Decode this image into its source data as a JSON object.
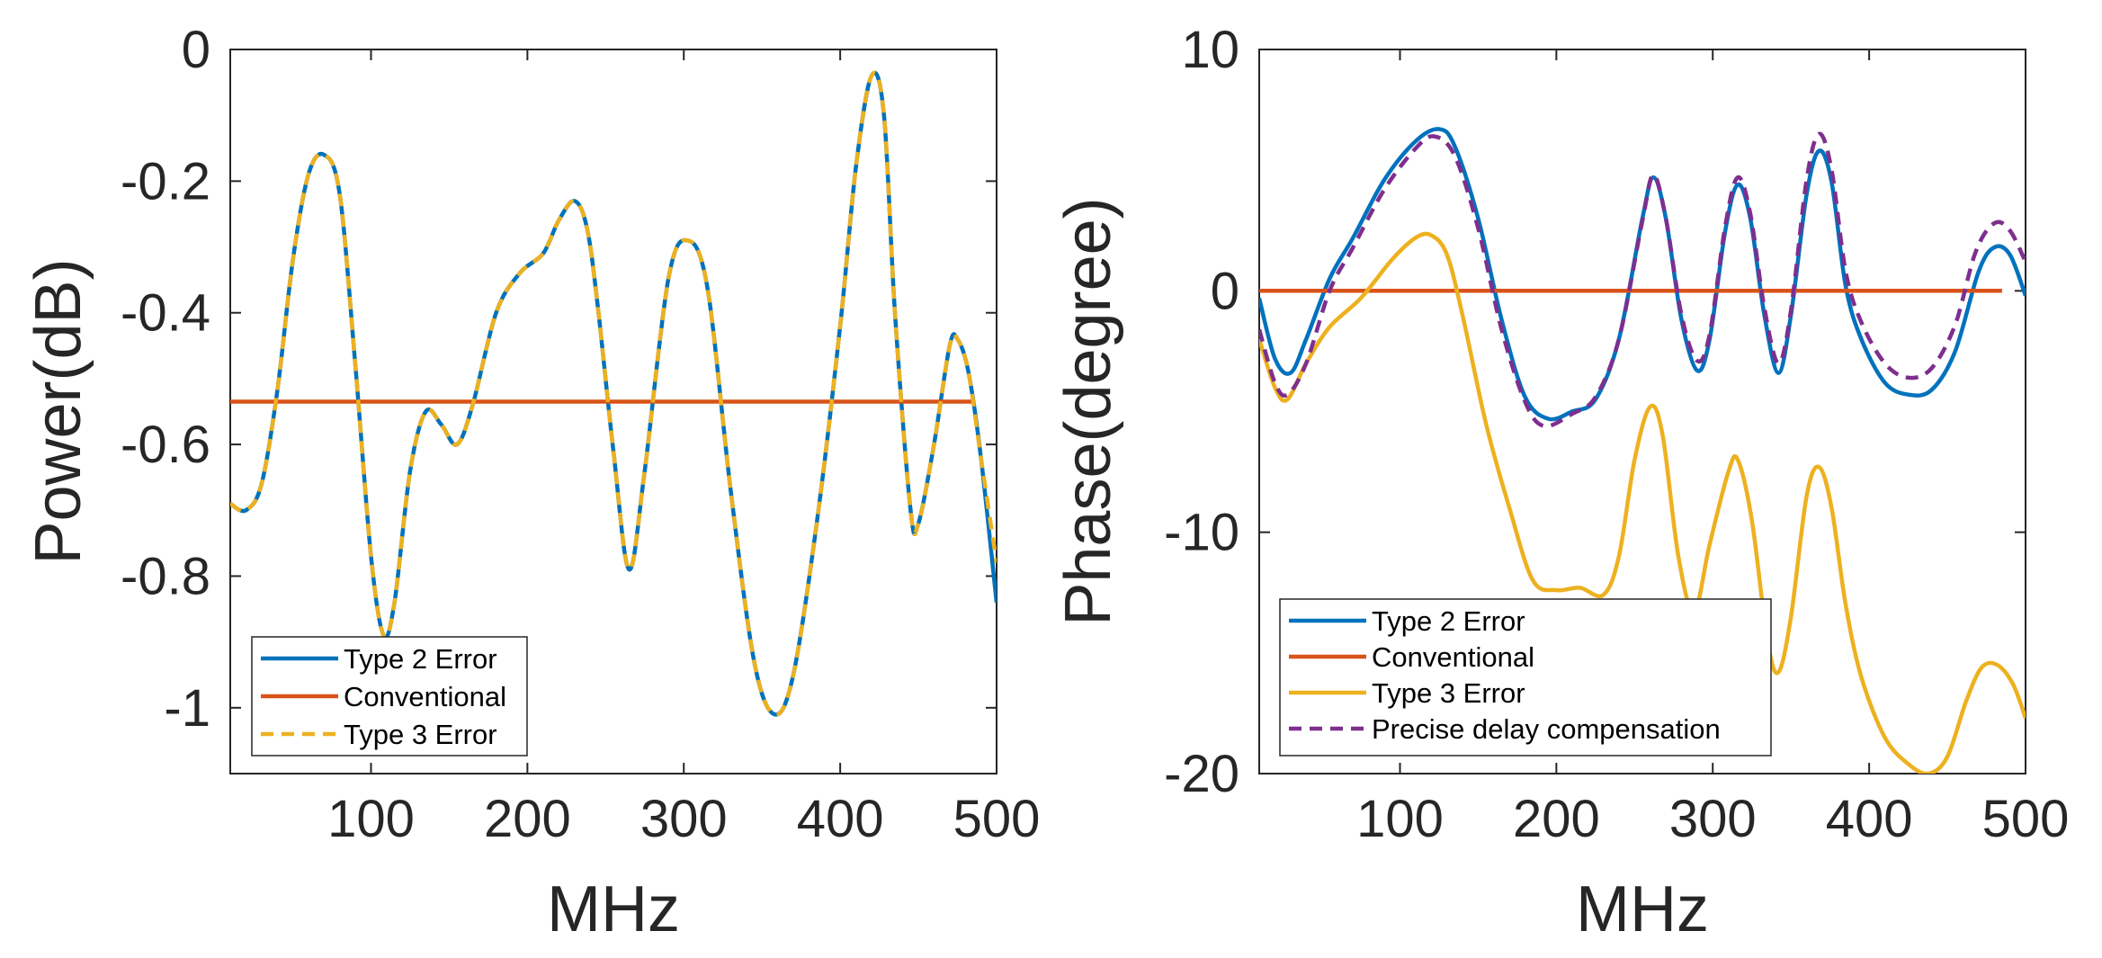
{
  "chart_data": [
    {
      "type": "line",
      "xlabel": "MHz",
      "ylabel": "Power(dB)",
      "xlim": [
        10,
        500
      ],
      "ylim": [
        -1.1,
        0
      ],
      "xticks": [
        100,
        200,
        300,
        400,
        500
      ],
      "yticks": [
        0,
        -0.2,
        -0.4,
        -0.6,
        -0.8,
        -1
      ],
      "xtick_labels": [
        "100",
        "200",
        "300",
        "400",
        "500"
      ],
      "ytick_labels": [
        "0",
        "-0.2",
        "-0.4",
        "-0.6",
        "-0.8",
        "-1"
      ],
      "legend_position": "bottom-left",
      "series": [
        {
          "name": "Type 2 Error",
          "color": "#0072BD",
          "style": "solid",
          "points": [
            [
              10,
              -0.69
            ],
            [
              20,
              -0.7
            ],
            [
              30,
              -0.66
            ],
            [
              40,
              -0.52
            ],
            [
              50,
              -0.32
            ],
            [
              60,
              -0.19
            ],
            [
              70,
              -0.16
            ],
            [
              80,
              -0.22
            ],
            [
              90,
              -0.48
            ],
            [
              100,
              -0.77
            ],
            [
              108,
              -0.89
            ],
            [
              115,
              -0.84
            ],
            [
              125,
              -0.64
            ],
            [
              135,
              -0.55
            ],
            [
              145,
              -0.57
            ],
            [
              155,
              -0.6
            ],
            [
              165,
              -0.54
            ],
            [
              180,
              -0.4
            ],
            [
              195,
              -0.34
            ],
            [
              210,
              -0.31
            ],
            [
              220,
              -0.26
            ],
            [
              230,
              -0.23
            ],
            [
              238,
              -0.27
            ],
            [
              245,
              -0.39
            ],
            [
              255,
              -0.61
            ],
            [
              265,
              -0.79
            ],
            [
              275,
              -0.64
            ],
            [
              290,
              -0.35
            ],
            [
              302,
              -0.29
            ],
            [
              315,
              -0.36
            ],
            [
              330,
              -0.67
            ],
            [
              345,
              -0.93
            ],
            [
              358,
              -1.01
            ],
            [
              370,
              -0.95
            ],
            [
              385,
              -0.72
            ],
            [
              400,
              -0.42
            ],
            [
              410,
              -0.18
            ],
            [
              420,
              -0.04
            ],
            [
              428,
              -0.1
            ],
            [
              435,
              -0.4
            ],
            [
              445,
              -0.7
            ],
            [
              450,
              -0.72
            ],
            [
              460,
              -0.6
            ],
            [
              470,
              -0.45
            ],
            [
              475,
              -0.44
            ],
            [
              482,
              -0.49
            ],
            [
              490,
              -0.62
            ],
            [
              500,
              -0.84
            ]
          ]
        },
        {
          "name": "Conventional",
          "color": "#D95319",
          "style": "solid",
          "points": [
            [
              10,
              -0.535
            ],
            [
              485,
              -0.535
            ]
          ]
        },
        {
          "name": "Type 3 Error",
          "color": "#EDB120",
          "style": "dashed",
          "points": [
            [
              10,
              -0.69
            ],
            [
              20,
              -0.7
            ],
            [
              30,
              -0.66
            ],
            [
              40,
              -0.52
            ],
            [
              50,
              -0.32
            ],
            [
              60,
              -0.19
            ],
            [
              70,
              -0.16
            ],
            [
              80,
              -0.22
            ],
            [
              90,
              -0.48
            ],
            [
              100,
              -0.77
            ],
            [
              108,
              -0.89
            ],
            [
              115,
              -0.84
            ],
            [
              125,
              -0.64
            ],
            [
              135,
              -0.55
            ],
            [
              145,
              -0.57
            ],
            [
              155,
              -0.6
            ],
            [
              165,
              -0.54
            ],
            [
              180,
              -0.4
            ],
            [
              195,
              -0.34
            ],
            [
              210,
              -0.31
            ],
            [
              220,
              -0.26
            ],
            [
              230,
              -0.23
            ],
            [
              238,
              -0.27
            ],
            [
              245,
              -0.39
            ],
            [
              255,
              -0.61
            ],
            [
              265,
              -0.79
            ],
            [
              275,
              -0.64
            ],
            [
              290,
              -0.35
            ],
            [
              302,
              -0.29
            ],
            [
              315,
              -0.36
            ],
            [
              330,
              -0.67
            ],
            [
              345,
              -0.93
            ],
            [
              358,
              -1.01
            ],
            [
              370,
              -0.95
            ],
            [
              385,
              -0.72
            ],
            [
              400,
              -0.42
            ],
            [
              410,
              -0.18
            ],
            [
              420,
              -0.04
            ],
            [
              428,
              -0.1
            ],
            [
              435,
              -0.4
            ],
            [
              445,
              -0.7
            ],
            [
              450,
              -0.72
            ],
            [
              460,
              -0.6
            ],
            [
              470,
              -0.45
            ],
            [
              475,
              -0.44
            ],
            [
              482,
              -0.49
            ],
            [
              490,
              -0.62
            ],
            [
              500,
              -0.78
            ]
          ]
        }
      ]
    },
    {
      "type": "line",
      "xlabel": "MHz",
      "ylabel": "Phase(degree)",
      "xlim": [
        10,
        500
      ],
      "ylim": [
        -20,
        10
      ],
      "xticks": [
        100,
        200,
        300,
        400,
        500
      ],
      "yticks": [
        10,
        0,
        -10,
        -20
      ],
      "xtick_labels": [
        "100",
        "200",
        "300",
        "400",
        "500"
      ],
      "ytick_labels": [
        "10",
        "0",
        "-10",
        "-20"
      ],
      "legend_position": "bottom-left",
      "series": [
        {
          "name": "Type 2 Error",
          "color": "#0072BD",
          "style": "solid",
          "points": [
            [
              10,
              -0.3
            ],
            [
              20,
              -2.8
            ],
            [
              30,
              -3.4
            ],
            [
              40,
              -2.0
            ],
            [
              55,
              0.5
            ],
            [
              70,
              2.2
            ],
            [
              90,
              4.6
            ],
            [
              110,
              6.2
            ],
            [
              125,
              6.7
            ],
            [
              135,
              6.0
            ],
            [
              150,
              3.0
            ],
            [
              165,
              -1.2
            ],
            [
              180,
              -4.4
            ],
            [
              195,
              -5.3
            ],
            [
              210,
              -5.0
            ],
            [
              225,
              -4.5
            ],
            [
              240,
              -2.0
            ],
            [
              255,
              3.0
            ],
            [
              262,
              4.7
            ],
            [
              270,
              3.0
            ],
            [
              280,
              -1.2
            ],
            [
              290,
              -3.3
            ],
            [
              298,
              -2.0
            ],
            [
              308,
              2.5
            ],
            [
              316,
              4.4
            ],
            [
              324,
              3.0
            ],
            [
              333,
              -1.0
            ],
            [
              342,
              -3.4
            ],
            [
              350,
              -1.0
            ],
            [
              360,
              4.0
            ],
            [
              368,
              5.8
            ],
            [
              376,
              4.5
            ],
            [
              385,
              0.2
            ],
            [
              395,
              -2.0
            ],
            [
              410,
              -3.8
            ],
            [
              425,
              -4.3
            ],
            [
              440,
              -4.1
            ],
            [
              455,
              -2.5
            ],
            [
              470,
              0.8
            ],
            [
              480,
              1.8
            ],
            [
              490,
              1.5
            ],
            [
              500,
              -0.2
            ]
          ]
        },
        {
          "name": "Conventional",
          "color": "#D95319",
          "style": "solid",
          "points": [
            [
              10,
              0
            ],
            [
              485,
              0
            ]
          ]
        },
        {
          "name": "Type 3 Error",
          "color": "#EDB120",
          "style": "solid",
          "points": [
            [
              10,
              -2.0
            ],
            [
              20,
              -4.0
            ],
            [
              28,
              -4.5
            ],
            [
              40,
              -3.0
            ],
            [
              55,
              -1.5
            ],
            [
              75,
              -0.3
            ],
            [
              95,
              1.3
            ],
            [
              110,
              2.2
            ],
            [
              120,
              2.3
            ],
            [
              130,
              1.5
            ],
            [
              140,
              -1.0
            ],
            [
              155,
              -5.5
            ],
            [
              170,
              -9.0
            ],
            [
              185,
              -12.0
            ],
            [
              200,
              -12.4
            ],
            [
              215,
              -12.3
            ],
            [
              230,
              -12.6
            ],
            [
              240,
              -11.0
            ],
            [
              250,
              -7.0
            ],
            [
              260,
              -4.8
            ],
            [
              268,
              -6.0
            ],
            [
              278,
              -11.0
            ],
            [
              288,
              -13.3
            ],
            [
              298,
              -10.5
            ],
            [
              310,
              -7.5
            ],
            [
              316,
              -7.0
            ],
            [
              325,
              -9.5
            ],
            [
              335,
              -14.5
            ],
            [
              342,
              -15.8
            ],
            [
              350,
              -13.5
            ],
            [
              360,
              -8.5
            ],
            [
              368,
              -7.3
            ],
            [
              376,
              -9.0
            ],
            [
              385,
              -13.0
            ],
            [
              395,
              -16.0
            ],
            [
              410,
              -18.5
            ],
            [
              425,
              -19.6
            ],
            [
              438,
              -20.0
            ],
            [
              450,
              -19.3
            ],
            [
              462,
              -17.0
            ],
            [
              472,
              -15.6
            ],
            [
              482,
              -15.5
            ],
            [
              492,
              -16.3
            ],
            [
              500,
              -17.7
            ]
          ]
        },
        {
          "name": "Precise delay compensation",
          "color": "#7E2F8E",
          "style": "dashed",
          "points": [
            [
              10,
              -1.6
            ],
            [
              20,
              -3.8
            ],
            [
              28,
              -4.3
            ],
            [
              40,
              -3.0
            ],
            [
              55,
              0.0
            ],
            [
              70,
              1.8
            ],
            [
              90,
              4.2
            ],
            [
              110,
              5.9
            ],
            [
              122,
              6.4
            ],
            [
              135,
              5.6
            ],
            [
              150,
              2.6
            ],
            [
              165,
              -1.6
            ],
            [
              180,
              -4.6
            ],
            [
              192,
              -5.6
            ],
            [
              210,
              -5.1
            ],
            [
              225,
              -4.4
            ],
            [
              240,
              -2.0
            ],
            [
              255,
              2.9
            ],
            [
              262,
              4.8
            ],
            [
              270,
              3.0
            ],
            [
              280,
              -1.0
            ],
            [
              290,
              -2.9
            ],
            [
              298,
              -1.8
            ],
            [
              308,
              2.7
            ],
            [
              316,
              4.7
            ],
            [
              324,
              3.2
            ],
            [
              333,
              -0.7
            ],
            [
              342,
              -3.0
            ],
            [
              350,
              -0.8
            ],
            [
              360,
              4.6
            ],
            [
              368,
              6.5
            ],
            [
              376,
              5.0
            ],
            [
              385,
              0.8
            ],
            [
              395,
              -1.3
            ],
            [
              410,
              -3.0
            ],
            [
              425,
              -3.6
            ],
            [
              440,
              -3.2
            ],
            [
              455,
              -1.4
            ],
            [
              468,
              1.6
            ],
            [
              480,
              2.8
            ],
            [
              490,
              2.5
            ],
            [
              500,
              1.2
            ]
          ]
        }
      ]
    }
  ]
}
